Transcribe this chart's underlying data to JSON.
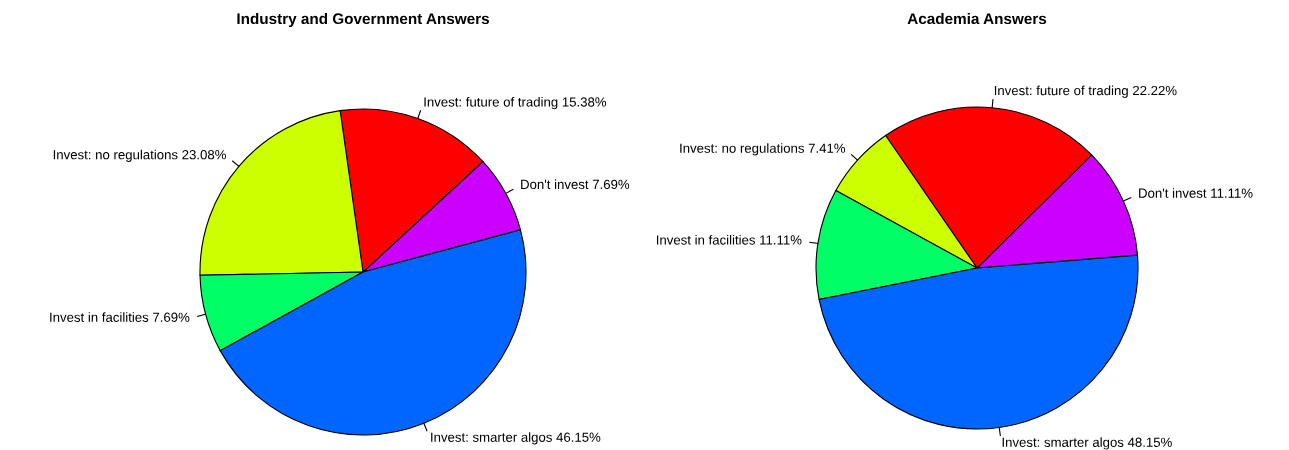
{
  "chart_data": [
    {
      "type": "pie",
      "title": "Industry and Government Answers",
      "categories": [
        "Don't invest",
        "Invest: future of trading",
        "Invest: no regulations",
        "Invest in facilities",
        "Invest: smarter algos"
      ],
      "values": [
        7.69,
        15.38,
        23.08,
        7.69,
        46.15
      ],
      "value_labels": [
        "7.69%",
        "15.38%",
        "23.08%",
        "7.69%",
        "46.15%"
      ],
      "colors": [
        "#cc00ff",
        "#ff0000",
        "#ccff00",
        "#00ff66",
        "#0066ff"
      ],
      "legend": false
    },
    {
      "type": "pie",
      "title": "Academia Answers",
      "categories": [
        "Don't invest",
        "Invest: future of trading",
        "Invest: no regulations",
        "Invest in facilities",
        "Invest: smarter algos"
      ],
      "values": [
        11.11,
        22.22,
        7.41,
        11.11,
        48.15
      ],
      "value_labels": [
        "11.11%",
        "22.22%",
        "7.41%",
        "11.11%",
        "48.15%"
      ],
      "colors": [
        "#cc00ff",
        "#ff0000",
        "#ccff00",
        "#00ff66",
        "#0066ff"
      ],
      "legend": false
    }
  ]
}
